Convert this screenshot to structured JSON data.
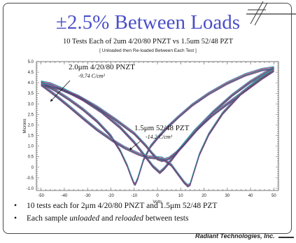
{
  "slide": {
    "title": "±2.5% Between Loads",
    "subtitle": "10 Tests Each of 2um 4/20/80 PNZT vs 1.5um 52/48 PZT",
    "subnote": "[ Unloaded then Re-loaded Between Each Test ]",
    "bullets": [
      {
        "parts": [
          {
            "t": "10 tests each for 2μm 4/20/80 PNZT and 1.5μm 52/48 PZT",
            "i": false
          }
        ]
      },
      {
        "parts": [
          {
            "t": "Each sample ",
            "i": false
          },
          {
            "t": "unloaded",
            "i": true
          },
          {
            "t": " and ",
            "i": false
          },
          {
            "t": "reloaded",
            "i": true
          },
          {
            "t": " between tests",
            "i": false
          }
        ]
      }
    ],
    "footer": "Radiant Technologies, Inc."
  },
  "chart_data": {
    "type": "line",
    "xlabel": "Volts",
    "ylabel": "Microns",
    "xlim": [
      -52,
      52
    ],
    "ylim": [
      -1.1,
      5.0
    ],
    "xticks": [
      -50,
      -40,
      -30,
      -20,
      -10,
      0,
      10,
      20,
      30,
      40,
      50
    ],
    "yticks": [
      -1.0,
      -0.5,
      0.0,
      0.5,
      1.0,
      1.5,
      2.0,
      2.5,
      3.0,
      3.5,
      4.0,
      4.5,
      5.0
    ],
    "ytick_labels": [
      "-1.0",
      "-0.5",
      "0",
      "0.5",
      "1.0",
      "1.5",
      "2.0",
      "2.5",
      "3.0",
      "3.5",
      "4.0",
      "4.5",
      "5.0"
    ],
    "grid": false,
    "series_colors": [
      "#1a2f9c",
      "#e0206a",
      "#2a8a3a",
      "#20a0b0",
      "#7a2a8a"
    ],
    "annotations": [
      {
        "label": "2.0μm 4/20/80 PNZT",
        "value": "-9.74 C/cm²"
      },
      {
        "label": "1.5μm 52/48 PZT",
        "value": "-14.2 C/cm²"
      }
    ],
    "series": [
      {
        "x": [
          -50,
          -44,
          -38,
          -32,
          -26,
          -20,
          -16,
          -13,
          -11,
          -10,
          -9.5,
          -8.5,
          -6,
          -3,
          0,
          4,
          9,
          15,
          22,
          30,
          38,
          45,
          50,
          46,
          40,
          32,
          24,
          16,
          10,
          6,
          3,
          1,
          -2,
          -6,
          -10,
          -16,
          -24,
          -32,
          -40,
          -46,
          -50
        ],
        "y": [
          4.02,
          3.65,
          3.22,
          2.74,
          2.18,
          1.48,
          0.78,
          0.08,
          -0.52,
          -0.78,
          -0.8,
          -0.55,
          0.35,
          0.98,
          1.38,
          1.86,
          2.38,
          2.95,
          3.48,
          3.98,
          4.38,
          4.62,
          4.7,
          4.45,
          4.05,
          3.4,
          2.62,
          1.72,
          0.92,
          0.35,
          -0.05,
          -0.25,
          0.05,
          0.62,
          1.18,
          1.88,
          2.62,
          3.2,
          3.66,
          3.94,
          4.02
        ]
      },
      {
        "x": [
          -50,
          -44,
          -38,
          -32,
          -26,
          -20,
          -14,
          -8,
          -4,
          -1,
          2,
          6,
          9,
          11.5,
          13,
          14,
          15.5,
          18,
          22,
          28,
          36,
          44,
          50,
          45,
          38,
          30,
          24,
          20,
          17,
          14,
          11,
          8,
          5,
          2,
          0,
          -2,
          -5,
          -10,
          -18,
          -26,
          -34,
          -42,
          -50
        ],
        "y": [
          3.92,
          3.42,
          2.88,
          2.32,
          1.78,
          1.32,
          0.92,
          0.62,
          0.48,
          0.45,
          0.42,
          0.1,
          -0.35,
          -0.72,
          -0.88,
          -0.82,
          -0.28,
          0.6,
          1.55,
          2.55,
          3.5,
          4.2,
          4.58,
          4.22,
          3.65,
          3.0,
          2.5,
          2.1,
          1.78,
          1.4,
          1.02,
          0.68,
          0.42,
          0.32,
          0.4,
          0.62,
          1.02,
          1.6,
          2.25,
          2.85,
          3.35,
          3.72,
          3.92
        ]
      }
    ]
  }
}
